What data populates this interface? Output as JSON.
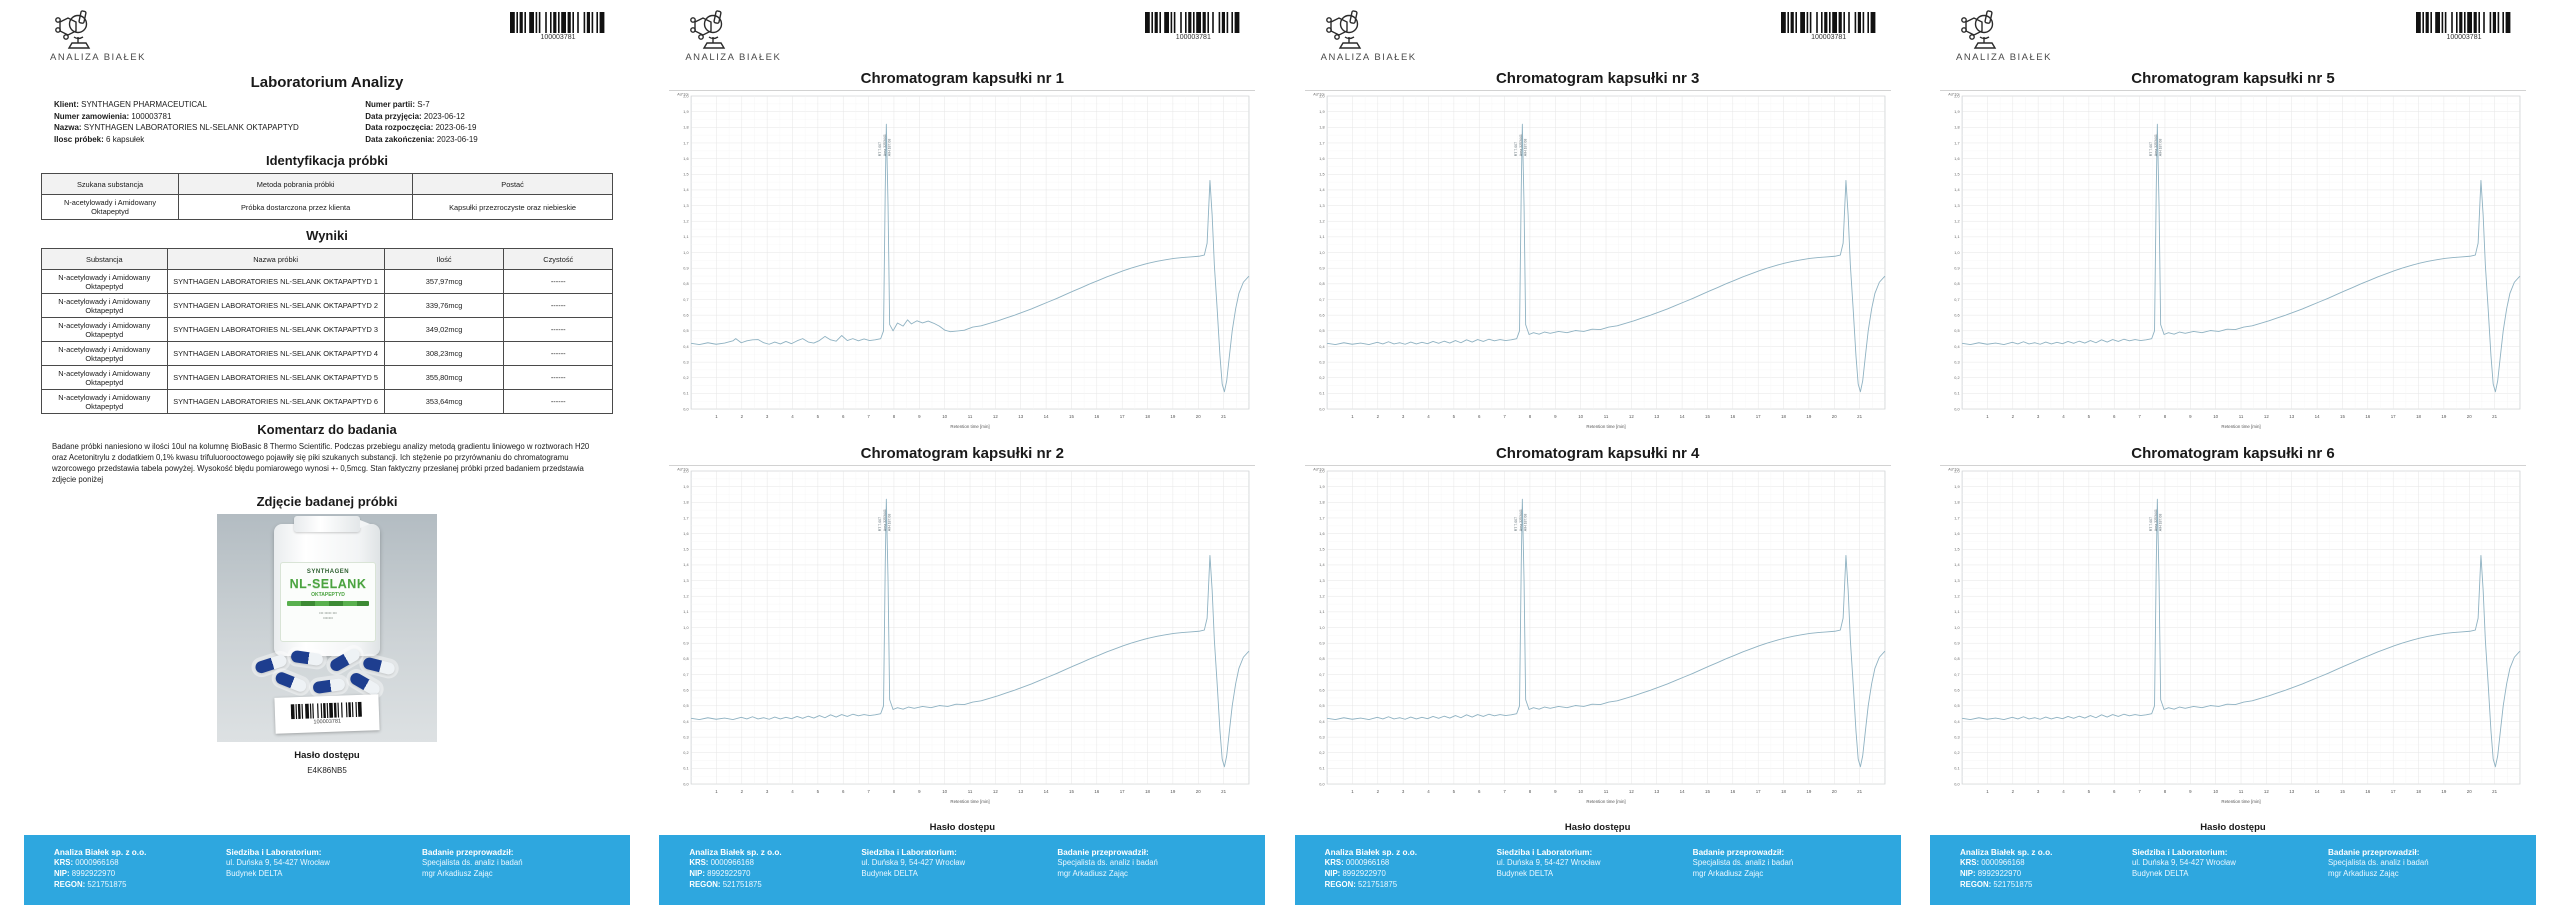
{
  "colors": {
    "footer_bg": "#2EA7DF",
    "trace_line": "#8fb2c2",
    "grid_major": "#e3e3e3",
    "grid_minor": "#f3f3f3",
    "table_header_bg": "#f2f2f2",
    "label_green": "#4aa33f"
  },
  "header": {
    "logo_text": "ANALIZA BIAŁEK",
    "barcode_number": "100003781"
  },
  "access": {
    "label": "Hasło dostępu",
    "code": "E4K86NB5"
  },
  "footer": {
    "company": {
      "name": "Analiza Białek sp. z o.o.",
      "krs_label": "KRS:",
      "krs": "0000966168",
      "nip_label": "NIP:",
      "nip": "8992922970",
      "regon_label": "REGON:",
      "regon": "521751875"
    },
    "address": {
      "title": "Siedziba i Laboratorium:",
      "line1": "ul. Duńska 9, 54-427 Wrocław",
      "line2": "Budynek DELTA"
    },
    "examiner": {
      "title": "Badanie przeprowadził:",
      "line1": "Specjalista ds. analiz i badań",
      "line2": "mgr Arkadiusz Zając"
    }
  },
  "report": {
    "title": "Laboratorium Analizy",
    "info_left": [
      {
        "label": "Klient:",
        "value": "SYNTHAGEN PHARMACEUTICAL"
      },
      {
        "label": "Numer zamowienia:",
        "value": "100003781"
      },
      {
        "label": "Nazwa:",
        "value": "SYNTHAGEN LABORATORIES NL-SELANK OKTAPAPTYD"
      },
      {
        "label": "Ilosc próbek:",
        "value": "6 kapsułek"
      }
    ],
    "info_right": [
      {
        "label": "Numer partii:",
        "value": "S-7"
      },
      {
        "label": "Data przyjęcia:",
        "value": "2023-06-12"
      },
      {
        "label": "Data rozpoczęcia:",
        "value": "2023-06-19"
      },
      {
        "label": "Data zakończenia:",
        "value": "2023-06-19"
      }
    ],
    "identyfikacja": {
      "title": "Identyfikacja próbki",
      "headers": [
        "Szukana substancja",
        "Metoda pobrania próbki",
        "Postać"
      ],
      "rows": [
        [
          "N-acetylowady i Amidowany Oktapeptyd",
          "Próbka dostarczona przez klienta",
          "Kapsułki przezroczyste oraz niebieskie"
        ]
      ]
    },
    "wyniki": {
      "title": "Wyniki",
      "headers": [
        "Substancja",
        "Nazwa próbki",
        "Ilość",
        "Czystość"
      ],
      "rows": [
        [
          "N-acetylowady i Amidowany Oktapeptyd",
          "SYNTHAGEN LABORATORIES NL-SELANK OKTAPAPTYD 1",
          "357,97mcg",
          "------"
        ],
        [
          "N-acetylowady i Amidowany Oktapeptyd",
          "SYNTHAGEN LABORATORIES NL-SELANK OKTAPAPTYD 2",
          "339,76mcg",
          "------"
        ],
        [
          "N-acetylowady i Amidowany Oktapeptyd",
          "SYNTHAGEN LABORATORIES NL-SELANK OKTAPAPTYD 3",
          "349,02mcg",
          "------"
        ],
        [
          "N-acetylowady i Amidowany Oktapeptyd",
          "SYNTHAGEN LABORATORIES NL-SELANK OKTAPAPTYD 4",
          "308,23mcg",
          "------"
        ],
        [
          "N-acetylowady i Amidowany Oktapeptyd",
          "SYNTHAGEN LABORATORIES NL-SELANK OKTAPAPTYD 5",
          "355,80mcg",
          "------"
        ],
        [
          "N-acetylowady i Amidowany Oktapeptyd",
          "SYNTHAGEN LABORATORIES NL-SELANK OKTAPAPTYD 6",
          "353,64mcg",
          "------"
        ]
      ]
    },
    "komentarz": {
      "title": "Komentarz do badania",
      "text": "Badane próbki naniesiono w ilości 10ul na kolumnę BioBasic 8 Thermo Scientific. Podczas przebiegu analizy metodą gradientu liniowego w roztworach H20 oraz Acetonitrylu z dodatkiem 0,1% kwasu trifuluorooctowego pojawiły się piki szukanych substancji. Ich stężenie po przyrównaniu do chromatogramu wzorcowego przedstawia tabela powyżej. Wysokość błędu pomiarowego wynosi +- 0,5mcg. Stan faktyczny przesłanej próbki przed badaniem przedstawia zdjęcie poniżej"
    },
    "zdjecie": {
      "title": "Zdjęcie badanej próbki",
      "bottle_brand": "SYNTHAGEN",
      "bottle_product": "NL-SELANK",
      "bottle_sub": "OKTAPEPTYD",
      "photo_barcode": "100003781"
    }
  },
  "chart_data": {
    "type": "line",
    "grid": "on",
    "xlabel": "Retention time [min]",
    "x_ticks": [
      "1",
      "2",
      "3",
      "4",
      "5",
      "6",
      "7",
      "8",
      "9",
      "10",
      "11",
      "12",
      "13",
      "14",
      "15",
      "16",
      "17",
      "18",
      "19",
      "20",
      "21"
    ],
    "y_axis_top_label": "AU*10²",
    "y_ticks": [
      "2,0",
      "1,9",
      "1,8",
      "1,7",
      "1,6",
      "1,5",
      "1,4",
      "1,3",
      "1,2",
      "1,1",
      "1,0",
      "0,9",
      "0,8",
      "0,7",
      "0,6",
      "0,5",
      "0,4",
      "0,3",
      "0,2",
      "0,1",
      "0,0"
    ],
    "ylim": [
      "0,0",
      "2,0"
    ],
    "peak_x": 35,
    "peak_annotation": [
      "RT 7.007",
      "Area 3253441",
      "A/H 187.08"
    ],
    "charts": [
      {
        "title": "Chromatogram kapsułki nr 1",
        "trace": "a"
      },
      {
        "title": "Chromatogram kapsułki nr 2",
        "trace": "b"
      },
      {
        "title": "Chromatogram kapsułki nr 3",
        "trace": "b"
      },
      {
        "title": "Chromatogram kapsułki nr 4",
        "trace": "b"
      },
      {
        "title": "Chromatogram kapsułki nr 5",
        "trace": "b"
      },
      {
        "title": "Chromatogram kapsułki nr 6",
        "trace": "b"
      }
    ],
    "traces": {
      "a": [
        [
          0,
          79
        ],
        [
          1.5,
          79.4
        ],
        [
          3,
          78.8
        ],
        [
          4.5,
          79.3
        ],
        [
          6,
          78.9
        ],
        [
          7.5,
          78.2
        ],
        [
          8,
          77.5
        ],
        [
          9,
          78.8
        ],
        [
          10,
          78.2
        ],
        [
          11,
          77.9
        ],
        [
          12,
          77.8
        ],
        [
          13,
          78.8
        ],
        [
          14,
          79.3
        ],
        [
          15,
          78.6
        ],
        [
          16,
          79.2
        ],
        [
          17,
          78.4
        ],
        [
          18,
          79.1
        ],
        [
          19,
          78.2
        ],
        [
          20,
          77.5
        ],
        [
          21,
          78.6
        ],
        [
          22,
          78.9
        ],
        [
          23,
          78.1
        ],
        [
          24,
          76.8
        ],
        [
          25,
          77.9
        ],
        [
          26,
          78.3
        ],
        [
          27,
          76.5
        ],
        [
          28,
          78.1
        ],
        [
          29,
          77.5
        ],
        [
          30,
          78.2
        ],
        [
          31,
          77.6
        ],
        [
          32,
          78.1
        ],
        [
          33,
          77.9
        ],
        [
          34,
          77.5
        ],
        [
          34.5,
          75
        ],
        [
          34.8,
          30
        ],
        [
          35,
          9
        ],
        [
          35.3,
          35
        ],
        [
          35.6,
          73
        ],
        [
          36.2,
          75
        ],
        [
          37,
          72.5
        ],
        [
          38,
          73.5
        ],
        [
          38.8,
          71.5
        ],
        [
          39.5,
          72.8
        ],
        [
          40.5,
          71.8
        ],
        [
          41.5,
          72.5
        ],
        [
          42.5,
          71.9
        ],
        [
          43.5,
          72.6
        ],
        [
          44.5,
          73.5
        ],
        [
          45.5,
          74.8
        ],
        [
          46.5,
          75.3
        ],
        [
          48,
          75
        ],
        [
          49,
          74.8
        ],
        [
          50.5,
          73.8
        ],
        [
          52,
          73.4
        ],
        [
          53.5,
          72.6
        ],
        [
          55,
          71.8
        ],
        [
          56.5,
          70.9
        ],
        [
          58,
          70
        ],
        [
          59.5,
          69
        ],
        [
          61,
          68
        ],
        [
          62.5,
          66.9
        ],
        [
          64,
          65.8
        ],
        [
          65.5,
          64.7
        ],
        [
          67,
          63.5
        ],
        [
          68.5,
          62.3
        ],
        [
          70,
          61.2
        ],
        [
          71.5,
          60
        ],
        [
          73,
          58.9
        ],
        [
          74.5,
          57.8
        ],
        [
          76,
          56.8
        ],
        [
          77.5,
          55.8
        ],
        [
          79,
          54.9
        ],
        [
          80.5,
          54.1
        ],
        [
          82,
          53.4
        ],
        [
          83.5,
          52.8
        ],
        [
          85,
          52.3
        ],
        [
          86.5,
          51.9
        ],
        [
          88,
          51.6
        ],
        [
          89.5,
          51.4
        ],
        [
          91,
          51.2
        ],
        [
          92,
          50.8
        ],
        [
          92.5,
          47
        ],
        [
          93,
          27
        ],
        [
          93.4,
          38
        ],
        [
          93.8,
          54
        ],
        [
          94.3,
          68
        ],
        [
          94.8,
          83
        ],
        [
          95.2,
          92
        ],
        [
          95.6,
          94.5
        ],
        [
          96,
          91
        ],
        [
          96.5,
          83
        ],
        [
          97,
          75
        ],
        [
          97.6,
          68
        ],
        [
          98.2,
          63
        ],
        [
          99,
          59.5
        ],
        [
          100,
          57.5
        ]
      ],
      "b": [
        [
          0,
          79
        ],
        [
          1.5,
          79.4
        ],
        [
          3,
          78.8
        ],
        [
          4.5,
          79.3
        ],
        [
          6,
          78.9
        ],
        [
          7.5,
          79.4
        ],
        [
          9,
          78.7
        ],
        [
          10,
          79.2
        ],
        [
          11,
          78.5
        ],
        [
          12,
          79.2
        ],
        [
          13,
          78.8
        ],
        [
          14,
          79.3
        ],
        [
          15,
          78.6
        ],
        [
          16,
          79.2
        ],
        [
          17,
          78.7
        ],
        [
          18,
          79.1
        ],
        [
          19,
          78.4
        ],
        [
          20,
          79
        ],
        [
          21,
          78.3
        ],
        [
          22,
          78.9
        ],
        [
          23,
          78.1
        ],
        [
          24,
          78.8
        ],
        [
          25,
          77.9
        ],
        [
          26,
          78.6
        ],
        [
          27,
          77.8
        ],
        [
          28,
          78.4
        ],
        [
          29,
          77.7
        ],
        [
          30,
          78.2
        ],
        [
          31,
          77.8
        ],
        [
          32,
          78.1
        ],
        [
          33,
          77.9
        ],
        [
          34,
          77.5
        ],
        [
          34.5,
          75
        ],
        [
          34.8,
          30
        ],
        [
          35,
          9
        ],
        [
          35.3,
          35
        ],
        [
          35.6,
          73
        ],
        [
          36.2,
          76.2
        ],
        [
          37,
          75.6
        ],
        [
          38,
          76.1
        ],
        [
          39,
          75.4
        ],
        [
          40,
          75.8
        ],
        [
          41.5,
          75.2
        ],
        [
          43,
          75.6
        ],
        [
          44.5,
          74.9
        ],
        [
          46,
          75.2
        ],
        [
          47.5,
          74.5
        ],
        [
          49,
          74.6
        ],
        [
          50.5,
          73.8
        ],
        [
          52,
          73.4
        ],
        [
          53.5,
          72.6
        ],
        [
          55,
          71.8
        ],
        [
          56.5,
          70.9
        ],
        [
          58,
          70
        ],
        [
          59.5,
          69
        ],
        [
          61,
          68
        ],
        [
          62.5,
          66.9
        ],
        [
          64,
          65.8
        ],
        [
          65.5,
          64.7
        ],
        [
          67,
          63.5
        ],
        [
          68.5,
          62.3
        ],
        [
          70,
          61.2
        ],
        [
          71.5,
          60
        ],
        [
          73,
          58.9
        ],
        [
          74.5,
          57.8
        ],
        [
          76,
          56.8
        ],
        [
          77.5,
          55.8
        ],
        [
          79,
          54.9
        ],
        [
          80.5,
          54.1
        ],
        [
          82,
          53.4
        ],
        [
          83.5,
          52.8
        ],
        [
          85,
          52.3
        ],
        [
          86.5,
          51.9
        ],
        [
          88,
          51.6
        ],
        [
          89.5,
          51.4
        ],
        [
          91,
          51.2
        ],
        [
          92,
          50.8
        ],
        [
          92.5,
          47
        ],
        [
          93,
          27
        ],
        [
          93.4,
          38
        ],
        [
          93.8,
          54
        ],
        [
          94.3,
          68
        ],
        [
          94.8,
          83
        ],
        [
          95.2,
          92
        ],
        [
          95.6,
          94.5
        ],
        [
          96,
          91
        ],
        [
          96.5,
          83
        ],
        [
          97,
          75
        ],
        [
          97.6,
          68
        ],
        [
          98.2,
          63
        ],
        [
          99,
          59.5
        ],
        [
          100,
          57.5
        ]
      ]
    }
  }
}
